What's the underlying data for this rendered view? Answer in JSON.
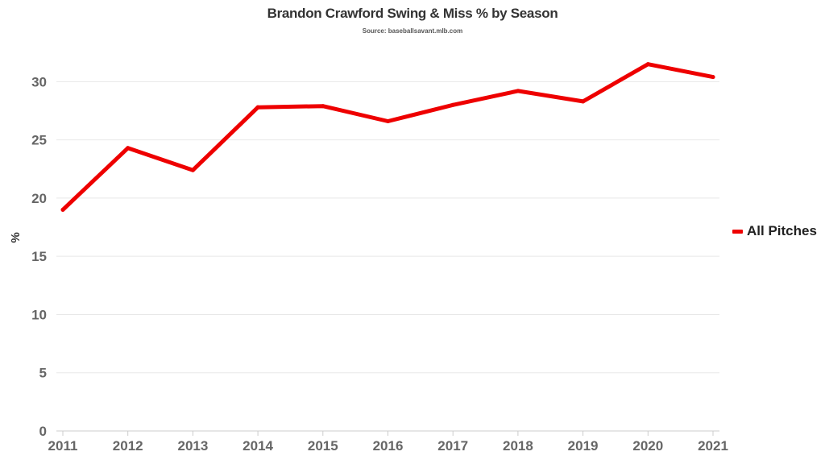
{
  "chart_data": {
    "type": "line",
    "title": "Brandon Crawford Swing & Miss % by Season",
    "subtitle": "Source: baseballsavant.mlb.com",
    "xlabel": "",
    "ylabel": "%",
    "x": [
      "2011",
      "2012",
      "2013",
      "2014",
      "2015",
      "2016",
      "2017",
      "2018",
      "2019",
      "2020",
      "2021"
    ],
    "ylim": [
      0,
      33
    ],
    "yticks": [
      0,
      5,
      10,
      15,
      20,
      25,
      30
    ],
    "grid": true,
    "legend_position": "right",
    "series": [
      {
        "name": "All Pitches",
        "color": "#ee0000",
        "values": [
          19.0,
          24.3,
          22.4,
          27.8,
          27.9,
          26.6,
          28.0,
          29.2,
          28.3,
          31.5,
          30.4
        ]
      }
    ]
  }
}
